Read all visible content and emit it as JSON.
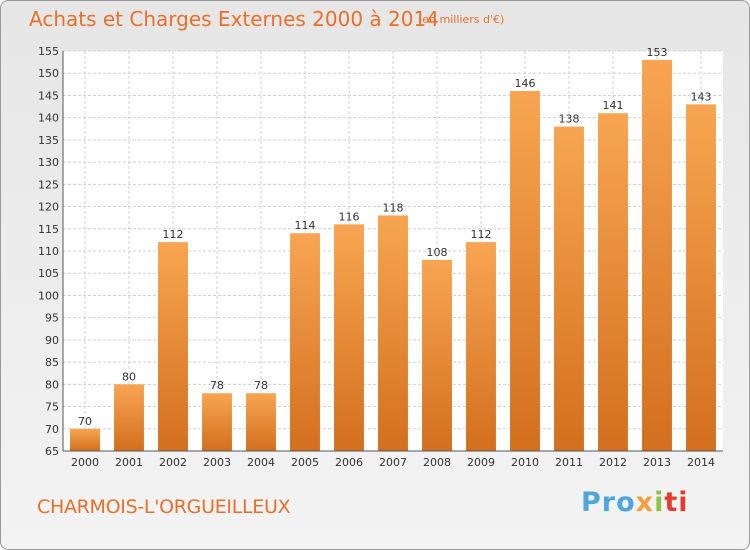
{
  "header": {
    "title": "Achats et Charges Externes 2000 à 2014",
    "subtitle": "(en milliers d'€)"
  },
  "footer": {
    "city": "CHARMOIS-L'ORGUEILLEUX",
    "logo": {
      "p1": "Pro",
      "p2": "x",
      "p3": "i",
      "p4": "ti"
    }
  },
  "colors": {
    "bar_top": "#f7a552",
    "bar_bottom": "#d36f1e",
    "accent": "#e8702a",
    "grid": "#d0d0d0"
  },
  "chart_data": {
    "type": "bar",
    "title": "Achats et Charges Externes 2000 à 2014",
    "subtitle": "(en milliers d'€)",
    "categories": [
      "2000",
      "2001",
      "2002",
      "2003",
      "2004",
      "2005",
      "2006",
      "2007",
      "2008",
      "2009",
      "2010",
      "2011",
      "2012",
      "2013",
      "2014"
    ],
    "values": [
      70,
      80,
      112,
      78,
      78,
      114,
      116,
      118,
      108,
      112,
      146,
      138,
      141,
      153,
      143
    ],
    "xlabel": "",
    "ylabel": "",
    "ylim": [
      65,
      155
    ],
    "yticks": [
      65,
      70,
      75,
      80,
      85,
      90,
      95,
      100,
      105,
      110,
      115,
      120,
      125,
      130,
      135,
      140,
      145,
      150,
      155
    ],
    "grid": true,
    "data_labels": true
  }
}
